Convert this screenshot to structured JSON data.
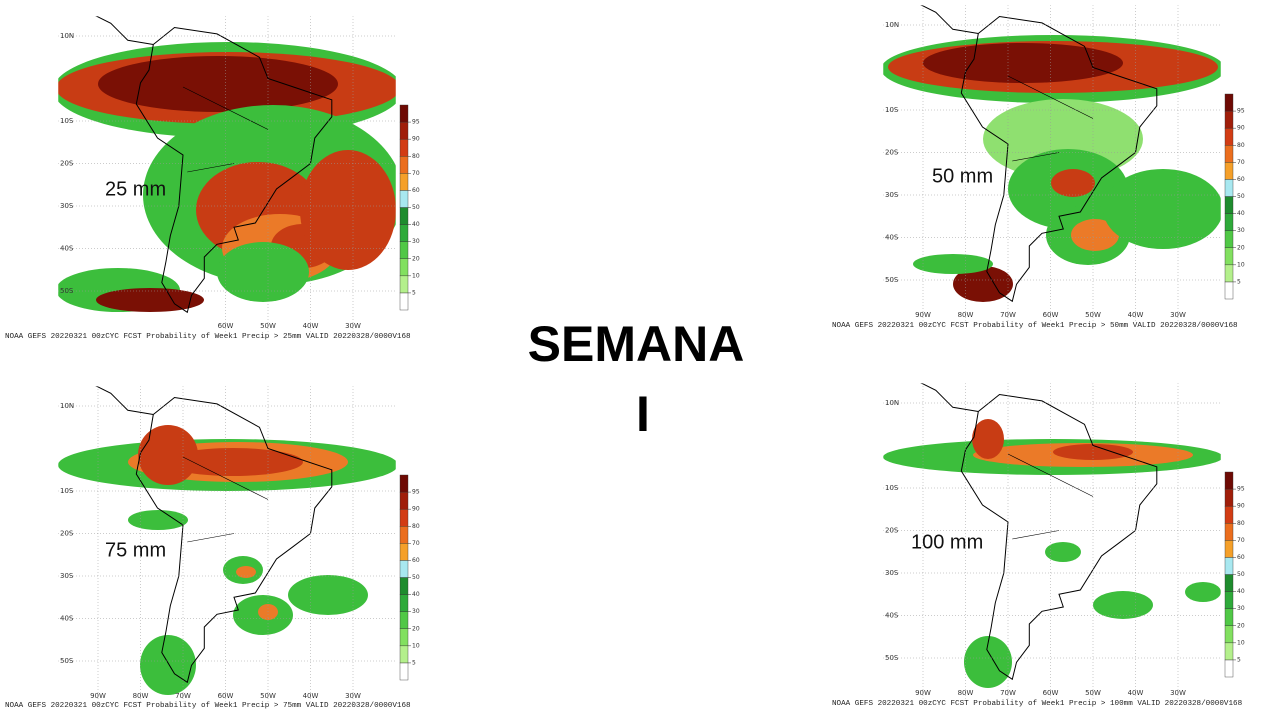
{
  "title": "SEMANA",
  "subtitle": "I",
  "colorbar": {
    "ticks": [
      5,
      10,
      20,
      30,
      40,
      50,
      60,
      70,
      80,
      90,
      95
    ],
    "colors": [
      "#ffffff",
      "#b4f08c",
      "#82e060",
      "#50c846",
      "#2eaa3a",
      "#1e8c2e",
      "#a8e8f0",
      "#f5a02a",
      "#eb6e1e",
      "#d23c14",
      "#a01e0a",
      "#6e0a04"
    ]
  },
  "panels": [
    {
      "label": "25 mm",
      "caption": "NOAA GEFS 20220321 00zCYC FCST Probability of Week1 Precip > 25mm  VALID 20220328/0000V168",
      "lat_labels": [
        "10N",
        "10S",
        "20S",
        "30S",
        "40S",
        "50S"
      ],
      "lon_labels": [
        "60W",
        "50W",
        "40W",
        "30W"
      ]
    },
    {
      "label": "50 mm",
      "caption": "NOAA GEFS 20220321 00zCYC FCST Probability of Week1 Precip > 50mm  VALID 20220328/0000V168",
      "lat_labels": [
        "10N",
        "10S",
        "20S",
        "30S",
        "40S",
        "50S"
      ],
      "lon_labels": [
        "90W",
        "80W",
        "70W",
        "60W",
        "50W",
        "40W",
        "30W"
      ]
    },
    {
      "label": "75 mm",
      "caption": "NOAA GEFS 20220321 00zCYC FCST Probability of Week1 Precip > 75mm  VALID 20220328/0000V168",
      "lat_labels": [
        "10N",
        "10S",
        "20S",
        "30S",
        "40S",
        "50S"
      ],
      "lon_labels": [
        "90W",
        "80W",
        "70W",
        "60W",
        "50W",
        "40W",
        "30W"
      ]
    },
    {
      "label": "100 mm",
      "caption": "NOAA GEFS 20220321 00zCYC FCST Probability of Week1 Precip > 100mm  VALID 20220328/0000V168",
      "lat_labels": [
        "10N",
        "10S",
        "20S",
        "30S",
        "40S",
        "50S"
      ],
      "lon_labels": [
        "90W",
        "80W",
        "70W",
        "60W",
        "50W",
        "40W",
        "30W"
      ]
    }
  ]
}
